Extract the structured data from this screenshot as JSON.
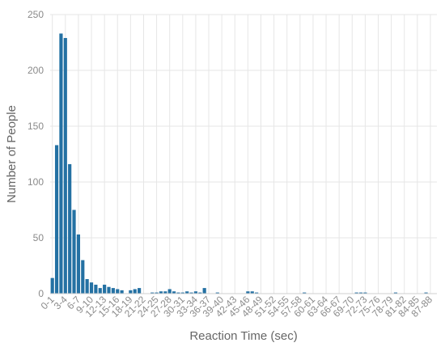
{
  "chart_data": {
    "type": "bar",
    "title": "",
    "xlabel": "Reaction Time (sec)",
    "ylabel": "Number of People",
    "ylim": [
      0,
      250
    ],
    "yticks": [
      0,
      50,
      100,
      150,
      200,
      250
    ],
    "grid": true,
    "bar_color": "#2471a3",
    "x_tick_labels": [
      "0-1",
      "3-4",
      "6-7",
      "9-10",
      "12-13",
      "15-16",
      "18-19",
      "21-22",
      "24-25",
      "27-28",
      "30-31",
      "33-34",
      "36-37",
      "39-40",
      "42-43",
      "45-46",
      "48-49",
      "51-52",
      "54-55",
      "57-58",
      "60-61",
      "63-64",
      "66-67",
      "69-70",
      "72-73",
      "75-76",
      "78-79",
      "81-82",
      "84-85",
      "87-88"
    ],
    "bins_start": 0,
    "bins_width": 1,
    "values": [
      14,
      133,
      233,
      229,
      116,
      75,
      53,
      30,
      13,
      10,
      8,
      5,
      8,
      6,
      5,
      4,
      3,
      0,
      3,
      4,
      5,
      0,
      0,
      1,
      1,
      2,
      2,
      4,
      2,
      1,
      1,
      2,
      1,
      2,
      1,
      5,
      0,
      0,
      1,
      0,
      0,
      0,
      0,
      0,
      0,
      2,
      2,
      1,
      0,
      0,
      0,
      0,
      0,
      0,
      0,
      0,
      0,
      0,
      1,
      0,
      0,
      0,
      0,
      0,
      0,
      0,
      0,
      0,
      0,
      0,
      1,
      1,
      1,
      0,
      0,
      0,
      0,
      0,
      0,
      1,
      0,
      0,
      0,
      0,
      0,
      0,
      1,
      0
    ]
  }
}
